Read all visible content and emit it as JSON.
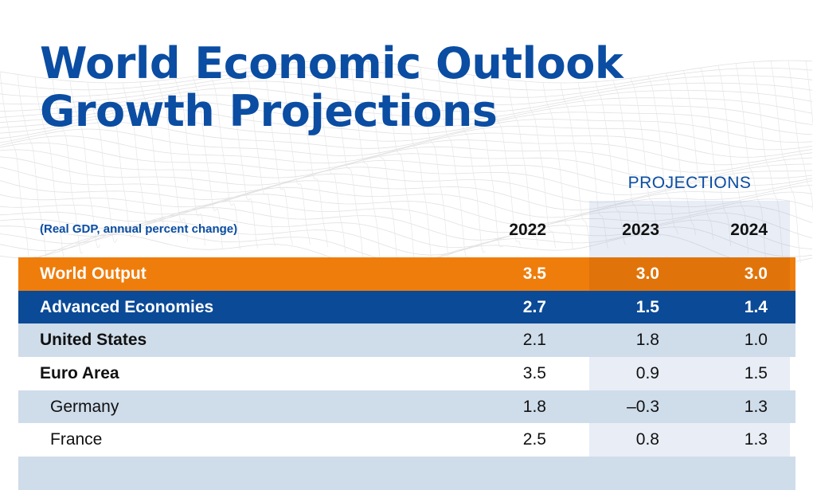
{
  "title_line1": "World Economic Outlook",
  "title_line2": "Growth Projections",
  "subtitle": "(Real GDP, annual percent change)",
  "projections_label": "PROJECTIONS",
  "colors": {
    "title": "#0a4da2",
    "world_output_row": "#ee7d0c",
    "advanced_row": "#0b4a97",
    "light_row": "#cfdcea"
  },
  "chart_data": {
    "type": "table",
    "columns": [
      "2022",
      "2023",
      "2024"
    ],
    "projection_columns": [
      "2023",
      "2024"
    ],
    "rows": [
      {
        "label": "World Output",
        "values": [
          "3.5",
          "3.0",
          "3.0"
        ],
        "style": "orange"
      },
      {
        "label": "Advanced Economies",
        "values": [
          "2.7",
          "1.5",
          "1.4"
        ],
        "style": "navy"
      },
      {
        "label": "United States",
        "values": [
          "2.1",
          "1.8",
          "1.0"
        ],
        "style": "light"
      },
      {
        "label": "Euro Area",
        "values": [
          "3.5",
          "0.9",
          "1.5"
        ],
        "style": "white"
      },
      {
        "label": "Germany",
        "values": [
          "1.8",
          "–0.3",
          "1.3"
        ],
        "style": "light",
        "indent": true
      },
      {
        "label": "France",
        "values": [
          "2.5",
          "0.8",
          "1.3"
        ],
        "style": "white",
        "indent": true
      },
      {
        "label": "",
        "values": [
          "",
          "",
          ""
        ],
        "style": "light"
      }
    ]
  }
}
